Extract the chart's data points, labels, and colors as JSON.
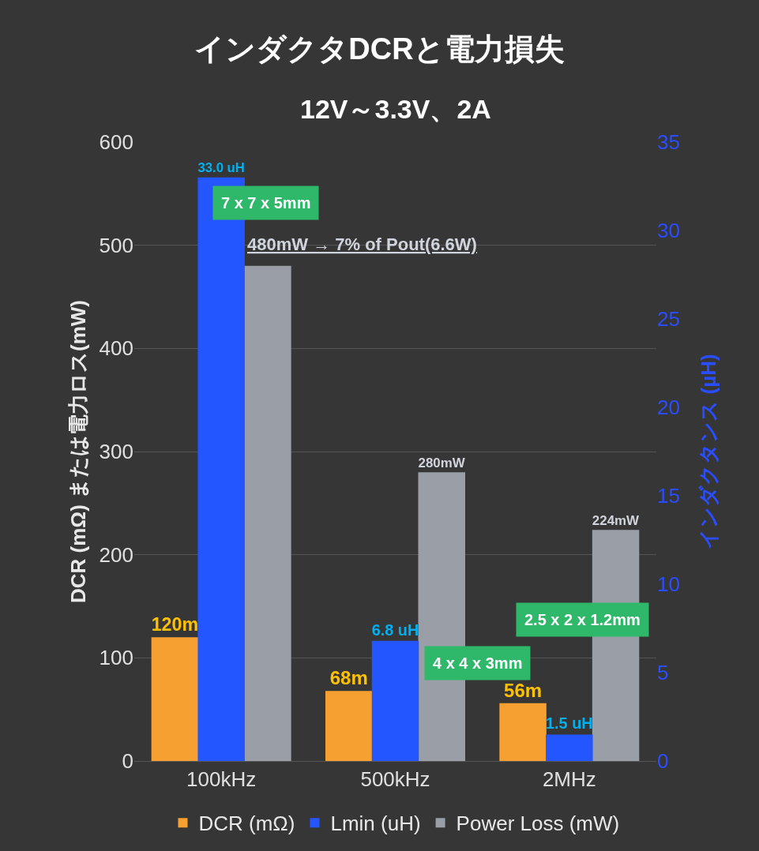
{
  "chart_data": {
    "type": "bar",
    "title": "インダクタDCRと電力損失",
    "subtitle": "12V～3.3V、2A",
    "ylabel": "DCR (mΩ) または電力ロス(mW)",
    "y2label": "インダクタンス (µH)",
    "categories": [
      "100kHz",
      "500kHz",
      "2MHz"
    ],
    "series": [
      {
        "name": "DCR (mΩ)",
        "color": "#f5a030",
        "values": [
          120,
          68,
          56
        ],
        "value_labels": [
          "120m",
          "68m",
          "56m"
        ]
      },
      {
        "name": "Lmin (uH)",
        "color": "#2456ff",
        "values": [
          33.0,
          6.8,
          1.5
        ],
        "axis": "y2",
        "value_labels": [
          "33.0 uH",
          "6.8 uH",
          "1.5 uH"
        ]
      },
      {
        "name": "Power Loss (mW)",
        "color": "#9a9ea6",
        "values": [
          480,
          280,
          224
        ],
        "value_labels": [
          null,
          "280mW",
          "224mW"
        ]
      }
    ],
    "annotations": [
      "7 x 7 x 5mm",
      "4 x 4 x 3mm",
      "2.5 x 2 x 1.2mm",
      "480mW → 7% of Pout(6.6W)"
    ],
    "ylim": [
      0,
      600
    ],
    "yticks": [
      0,
      100,
      200,
      300,
      400,
      500,
      600
    ],
    "y2lim": [
      0,
      35
    ],
    "y2ticks": [
      0,
      5,
      10,
      15,
      20,
      25,
      30,
      35
    ],
    "grid": "y",
    "legend": "bottom"
  }
}
